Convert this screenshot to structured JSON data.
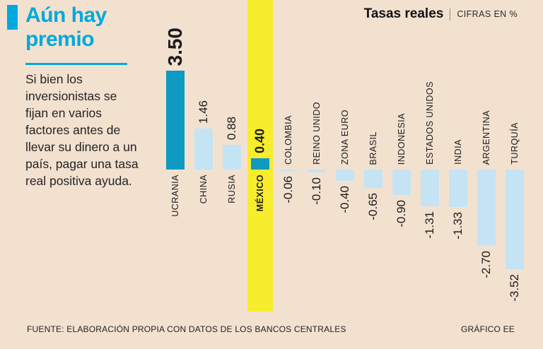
{
  "page": {
    "background": "#f3e1d0"
  },
  "sidebar": {
    "title": "Aún hay premio",
    "title_lines": [
      "Aún hay",
      "premio"
    ],
    "description": "Si bien los inversionistas se fijan en varios factores antes de llevar su dinero a un país, pagar una tasa real positiva ayuda."
  },
  "header": {
    "chart_title": "Tasas reales",
    "units": "CIFRAS EN %"
  },
  "footer": {
    "source": "FUENTE: ELABORACIÓN PROPIA CON DATOS DE LOS BANCOS CENTRALES",
    "credit": "GRÁFICO EE"
  },
  "chart_data": {
    "type": "bar",
    "orientation": "vertical",
    "title": "Tasas reales",
    "units_label": "CIFRAS EN %",
    "grid": false,
    "legend": "none",
    "ylim": [
      -3.52,
      3.5
    ],
    "categories": [
      "UCRANIA",
      "CHINA",
      "RUSIA",
      "MÉXICO",
      "COLOMBIA",
      "REINO UNIDO",
      "ZONA EURO",
      "BRASIL",
      "INDONESIA",
      "ESTADOS UNIDOS",
      "INDIA",
      "ARGENTINA",
      "TURQUÍA"
    ],
    "values": [
      3.5,
      1.46,
      0.88,
      0.4,
      -0.06,
      -0.1,
      -0.4,
      -0.65,
      -0.9,
      -1.31,
      -1.33,
      -2.7,
      -3.52
    ],
    "items": [
      {
        "category": "UCRANIA",
        "value": 3.5,
        "label": "3.50",
        "accent": true,
        "big": true
      },
      {
        "category": "CHINA",
        "value": 1.46,
        "label": "1.46"
      },
      {
        "category": "RUSIA",
        "value": 0.88,
        "label": "0.88"
      },
      {
        "category": "MÉXICO",
        "value": 0.4,
        "label": "0.40",
        "accent": true,
        "bold": true,
        "name_bold": true,
        "band": true
      },
      {
        "category": "COLOMBIA",
        "value": -0.06,
        "label": "-0.06"
      },
      {
        "category": "REINO UNIDO",
        "value": -0.1,
        "label": "-0.10"
      },
      {
        "category": "ZONA EURO",
        "value": -0.4,
        "label": "-0.40"
      },
      {
        "category": "BRASIL",
        "value": -0.65,
        "label": "-0.65"
      },
      {
        "category": "INDONESIA",
        "value": -0.9,
        "label": "-0.90"
      },
      {
        "category": "ESTADOS UNIDOS",
        "value": -1.31,
        "label": "-1.31"
      },
      {
        "category": "INDIA",
        "value": -1.33,
        "label": "-1.33"
      },
      {
        "category": "ARGENTINA",
        "value": -2.7,
        "label": "-2.70"
      },
      {
        "category": "TURQUÍA",
        "value": -3.52,
        "label": "-3.52"
      }
    ],
    "colors": {
      "background": "#f3e1d0",
      "accent": "#00a9dd",
      "bar_dark": "#0e9ac1",
      "bar_light": "#c4e4f4",
      "band": "#f8ed2d",
      "text": "#1b1b1b"
    }
  }
}
